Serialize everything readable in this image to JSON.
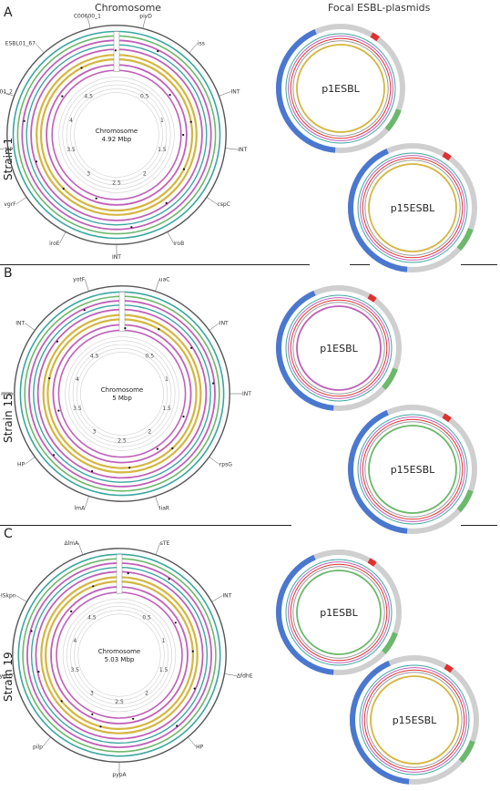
{
  "headers": {
    "chromosome": "Chromosome",
    "plasmids": "Focal ESBL-plasmids"
  },
  "colors": {
    "outer": "#555555",
    "teal": "#3aa6a0",
    "green": "#6cb86c",
    "pink": "#c060b8",
    "gold": "#d4b640",
    "grey": "#9a9a9a",
    "blue": "#4a78d0",
    "red": "#e03030"
  },
  "panels": [
    {
      "letter": "A",
      "strain": "Strain 1",
      "chromosome": {
        "name": "Chromosome",
        "size": "4.92 Mbp",
        "ticks": [
          "0.5",
          "1",
          "1.5",
          "2",
          "2.5",
          "3",
          "3.5",
          "4",
          "4.5"
        ],
        "genes": [
          "pivD",
          "iss",
          "INT",
          "INT",
          "cspC",
          "iroB",
          "INT",
          "iroE",
          "vgrF",
          "HP",
          "ESBL01_2",
          "ESBL01_67",
          "C00600_1"
        ]
      },
      "plasmids": [
        {
          "name": "p1ESBL"
        },
        {
          "name": "p15ESBL"
        }
      ]
    },
    {
      "letter": "B",
      "strain": "Strain 15",
      "chromosome": {
        "name": "Chromosome",
        "size": "5 Mbp",
        "ticks": [
          "0.5",
          "1",
          "1.5",
          "2",
          "2.5",
          "3",
          "3.5",
          "4",
          "4.5"
        ],
        "genes": [
          "uaC",
          "INT",
          "INT",
          "rpsG",
          "IiaR",
          "lmA",
          "HP",
          "rrrm",
          "INT",
          "yotF"
        ]
      },
      "plasmids": [
        {
          "name": "p1ESBL"
        },
        {
          "name": "p15ESBL"
        }
      ]
    },
    {
      "letter": "C",
      "strain": "Strain 19",
      "chromosome": {
        "name": "Chromosome",
        "size": "5.03 Mbp",
        "ticks": [
          "0.5",
          "1",
          "1.5",
          "2",
          "2.5",
          "3",
          "3.5",
          "4",
          "4.5"
        ],
        "genes": [
          "sTE",
          "INT",
          "ΔfdhE",
          "HP",
          "pypA",
          "pilp",
          "ygrO",
          "Δ9206bp-ISkpn",
          "ΔlmA"
        ]
      },
      "plasmids": [
        {
          "name": "p1ESBL"
        },
        {
          "name": "p15ESBL"
        }
      ]
    }
  ]
}
